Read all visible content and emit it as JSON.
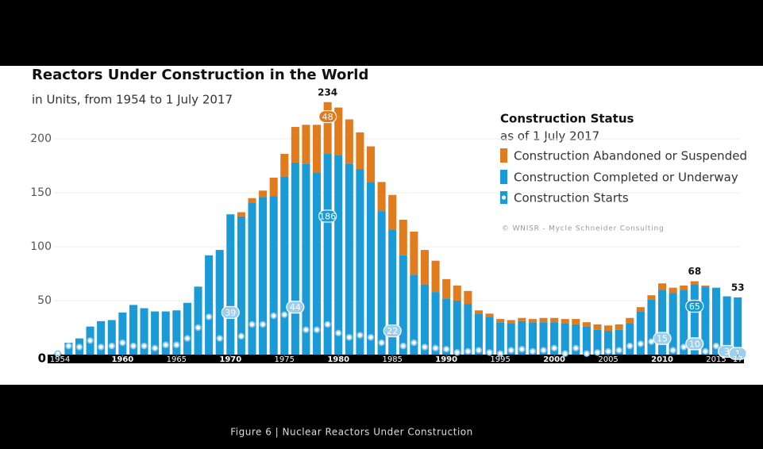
{
  "caption": "Figure 6 | Nuclear Reactors Under Construction",
  "chart_data": {
    "type": "stacked_bar",
    "title": "Reactors Under Construction in the World",
    "subtitle": "in Units, from 1954 to 1 July 2017",
    "legend_title": "Construction Status",
    "legend_subtitle": "as of 1 July 2017",
    "credit": "© WNISR - Mycle Schneider Consulting",
    "x": [
      1954,
      1955,
      1956,
      1957,
      1958,
      1959,
      1960,
      1961,
      1962,
      1963,
      1964,
      1965,
      1966,
      1967,
      1968,
      1969,
      1970,
      1971,
      1972,
      1973,
      1974,
      1975,
      1976,
      1977,
      1978,
      1979,
      1980,
      1981,
      1982,
      1983,
      1984,
      1985,
      1986,
      1987,
      1988,
      1989,
      1990,
      1991,
      1992,
      1993,
      1994,
      1995,
      1996,
      1997,
      1998,
      1999,
      2000,
      2001,
      2002,
      2003,
      2004,
      2005,
      2006,
      2007,
      2008,
      2009,
      2010,
      2011,
      2012,
      2013,
      2014,
      2015,
      2016,
      2017
    ],
    "series": [
      {
        "name": "Construction Completed or Underway",
        "color": "#1a9ad6",
        "kind": "bar",
        "labeled_years": [
          1979,
          2013
        ],
        "values": [
          1,
          11,
          15,
          26,
          31,
          32,
          39,
          46,
          43,
          40,
          40,
          41,
          48,
          63,
          92,
          97,
          130,
          128,
          141,
          146,
          147,
          165,
          178,
          177,
          169,
          186,
          185,
          177,
          172,
          160,
          133,
          116,
          92,
          74,
          65,
          58,
          52,
          50,
          47,
          38,
          35,
          30,
          29,
          31,
          30,
          30,
          30,
          29,
          28,
          26,
          23,
          22,
          23,
          29,
          40,
          51,
          60,
          57,
          60,
          65,
          63,
          62,
          54,
          53
        ]
      },
      {
        "name": "Construction Abandoned or Suspended",
        "color": "#e07b1e",
        "kind": "bar",
        "labeled_years": [
          1979
        ],
        "values": [
          0,
          0,
          0,
          0,
          0,
          0,
          0,
          0,
          0,
          0,
          0,
          0,
          0,
          0,
          0,
          0,
          0,
          4,
          4,
          6,
          17,
          21,
          33,
          36,
          44,
          48,
          44,
          41,
          34,
          33,
          27,
          32,
          33,
          40,
          32,
          29,
          18,
          14,
          12,
          3,
          3,
          3,
          3,
          3,
          3,
          4,
          4,
          4,
          5,
          4,
          5,
          5,
          5,
          5,
          4,
          4,
          6,
          5,
          4,
          3,
          1,
          0,
          0,
          0
        ]
      },
      {
        "name": "Construction Starts",
        "color": "#1a9ad6",
        "kind": "dot",
        "labeled_years": [
          1970,
          1976,
          1985,
          2010,
          2013,
          2016,
          2017
        ],
        "values": [
          1,
          8,
          7,
          13,
          7,
          8,
          11,
          8,
          8,
          6,
          9,
          9,
          15,
          25,
          35,
          15,
          39,
          17,
          28,
          28,
          36,
          37,
          44,
          23,
          23,
          28,
          20,
          16,
          18,
          16,
          11,
          22,
          8,
          11,
          7,
          6,
          5,
          2,
          3,
          4,
          2,
          1,
          4,
          5,
          3,
          4,
          6,
          1,
          6,
          1,
          2,
          3,
          4,
          8,
          10,
          12,
          15,
          4,
          7,
          10,
          3,
          8,
          3,
          1
        ]
      }
    ],
    "totals": {
      "x": [
        1979,
        2013,
        2017
      ],
      "values": [
        234,
        68,
        53
      ]
    },
    "xlim": [
      1953.5,
      2017.5
    ],
    "xticks": [
      1954,
      1960,
      1965,
      1970,
      1975,
      1980,
      1985,
      1990,
      1995,
      2000,
      2005,
      2010,
      2015,
      {
        "value": 2017,
        "label": "17"
      }
    ],
    "ylim": [
      0,
      240
    ],
    "yticks": [
      0,
      50,
      100,
      150,
      200
    ],
    "grid": true
  }
}
